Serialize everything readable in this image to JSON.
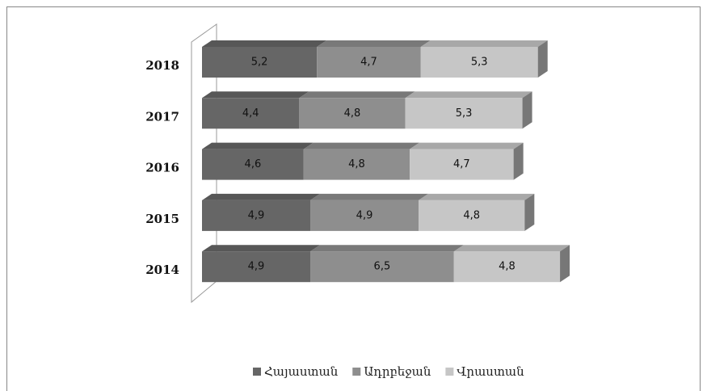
{
  "chart_data": {
    "type": "bar",
    "orientation": "horizontal",
    "stacked": true,
    "categories": [
      "2018",
      "2017",
      "2016",
      "2015",
      "2014"
    ],
    "series": [
      {
        "name": "Հայաստան",
        "color": "#666666",
        "values": [
          5.2,
          4.4,
          4.6,
          4.9,
          4.9
        ],
        "value_labels": [
          "5,2",
          "4,4",
          "4,6",
          "4,9",
          "4,9"
        ]
      },
      {
        "name": "Ադրբեջան",
        "color": "#8e8e8e",
        "values": [
          4.7,
          4.8,
          4.8,
          4.9,
          6.5
        ],
        "value_labels": [
          "4,7",
          "4,8",
          "4,8",
          "4,9",
          "6,5"
        ]
      },
      {
        "name": "Վրաստան",
        "color": "#c6c6c6",
        "values": [
          5.3,
          5.3,
          4.7,
          4.8,
          4.8
        ],
        "value_labels": [
          "5,3",
          "5,3",
          "4,7",
          "4,8",
          "4,8"
        ]
      }
    ],
    "legend": "bottom"
  }
}
